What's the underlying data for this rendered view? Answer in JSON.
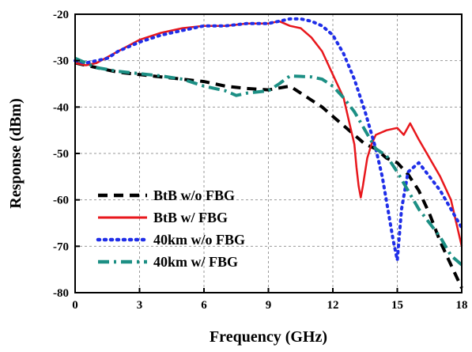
{
  "chart_data": {
    "type": "line",
    "xlabel": "Frequency (GHz)",
    "ylabel": "Response (dBm)",
    "xlim": [
      0,
      18
    ],
    "ylim": [
      -80,
      -20
    ],
    "xticks": [
      0,
      3,
      6,
      9,
      12,
      15,
      18
    ],
    "yticks": [
      -20,
      -30,
      -40,
      -50,
      -60,
      -70,
      -80
    ],
    "grid": true,
    "legend_position": "bottom-left",
    "series": [
      {
        "name": "BtB w/o FBG",
        "color": "#000000",
        "dash": "dashed",
        "x": [
          0,
          1,
          2,
          3,
          4,
          5,
          6,
          7,
          8,
          9,
          10,
          10.5,
          11,
          11.5,
          12,
          12.5,
          13,
          13.5,
          14,
          14.5,
          15,
          15.5,
          16,
          16.5,
          17,
          17.5,
          18
        ],
        "y": [
          -30.5,
          -31.5,
          -32.5,
          -33,
          -33.5,
          -34,
          -34.5,
          -35.5,
          -36,
          -36.3,
          -35.5,
          -37,
          -38.5,
          -40,
          -42,
          -44,
          -46,
          -48,
          -49,
          -51,
          -52,
          -54.5,
          -58,
          -63,
          -69,
          -74,
          -79
        ]
      },
      {
        "name": "BtB w/ FBG",
        "color": "#e8171c",
        "dash": "solid",
        "x": [
          0,
          0.5,
          1,
          2,
          3,
          4,
          5,
          6,
          7,
          8,
          9,
          9.5,
          10,
          10.5,
          11,
          11.5,
          12,
          12.5,
          12.8,
          13,
          13.1,
          13.2,
          13.3,
          13.4,
          13.6,
          13.8,
          14,
          14.5,
          15,
          15.3,
          15.6,
          16,
          16.5,
          17,
          17.5,
          18
        ],
        "y": [
          -30.5,
          -31,
          -30.5,
          -28,
          -25.5,
          -24,
          -23,
          -22.5,
          -22.5,
          -22,
          -22,
          -21.5,
          -22.5,
          -23,
          -25,
          -28,
          -33,
          -38,
          -44,
          -48,
          -53,
          -57,
          -59.5,
          -57,
          -51,
          -48,
          -46,
          -45,
          -44.5,
          -46,
          -43.5,
          -47,
          -51,
          -55,
          -60,
          -70
        ]
      },
      {
        "name": "40km w/o FBG",
        "color": "#1f2ee8",
        "dash": "dotted",
        "x": [
          0,
          0.5,
          1,
          1.5,
          2,
          3,
          4,
          5,
          6,
          7,
          8,
          9,
          9.5,
          10,
          10.5,
          11,
          11.5,
          12,
          12.5,
          13,
          13.5,
          14,
          14.3,
          14.6,
          14.8,
          15,
          15.2,
          15.5,
          16,
          16.5,
          17,
          17.5,
          18
        ],
        "y": [
          -30,
          -30.5,
          -30,
          -29.5,
          -28,
          -26,
          -24.5,
          -23.5,
          -22.5,
          -22.5,
          -22,
          -22,
          -21.5,
          -21,
          -21,
          -21.5,
          -22.5,
          -24.5,
          -28.5,
          -34,
          -41,
          -49,
          -55,
          -63,
          -68.5,
          -73,
          -62,
          -54,
          -52,
          -55,
          -58,
          -62,
          -66
        ]
      },
      {
        "name": "40km w/ FBG",
        "color": "#1c8f84",
        "dash": "dashdot",
        "x": [
          0,
          1,
          2,
          3,
          4,
          5,
          6,
          7,
          7.5,
          8,
          9,
          9.5,
          10,
          11,
          11.5,
          12,
          12.5,
          13,
          13.5,
          14,
          14.5,
          15,
          15.5,
          16,
          16.5,
          17,
          17.5,
          18
        ],
        "y": [
          -29.5,
          -31.5,
          -32.3,
          -32.8,
          -33.3,
          -34,
          -35.5,
          -36.5,
          -37.5,
          -37,
          -36.5,
          -35,
          -33.3,
          -33.5,
          -34,
          -35.5,
          -38,
          -41,
          -45,
          -49,
          -50.5,
          -54,
          -58,
          -62,
          -65,
          -68,
          -72,
          -74
        ]
      }
    ]
  }
}
